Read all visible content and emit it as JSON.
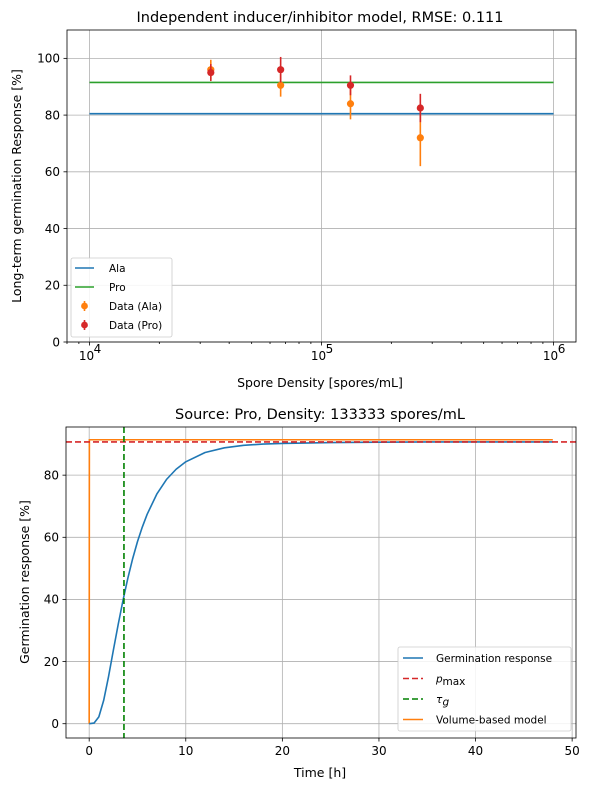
{
  "chart_data": [
    {
      "type": "scatter",
      "title": "Independent inducer/inhibitor model, RMSE: 0.111",
      "xlabel": "Spore Density [spores/mL]",
      "ylabel": "Long-term germination Response [%]",
      "xscale": "log",
      "xlim": [
        8000,
        1250000
      ],
      "ylim": [
        0,
        110
      ],
      "xticks": [
        10000,
        100000,
        1000000
      ],
      "xticklabels": [
        "10",
        "10",
        "10"
      ],
      "xtick_exponents": [
        "4",
        "5",
        "6"
      ],
      "yticks": [
        0,
        20,
        40,
        60,
        80,
        100
      ],
      "grid": true,
      "legend_position": "lower-left",
      "lines": [
        {
          "name": "Ala",
          "color": "#1f77b4",
          "x": [
            10000,
            1000000
          ],
          "y": [
            80.5,
            80.5
          ]
        },
        {
          "name": "Pro",
          "color": "#2ca02c",
          "x": [
            10000,
            1000000
          ],
          "y": [
            91.5,
            91.5
          ]
        }
      ],
      "errorbars": [
        {
          "name": "Data (Ala)",
          "color": "#ff7f0e",
          "x": [
            33333,
            66667,
            133333,
            266667
          ],
          "y": [
            96,
            90.5,
            84,
            72
          ],
          "err": [
            3.5,
            4,
            5.5,
            10
          ]
        },
        {
          "name": "Data (Pro)",
          "color": "#d62728",
          "x": [
            33333,
            66667,
            133333,
            266667
          ],
          "y": [
            95,
            96,
            90.5,
            82.5
          ],
          "err": [
            3,
            4.5,
            3.5,
            5
          ]
        }
      ]
    },
    {
      "type": "line",
      "title": "Source: Pro, Density: 133333 spores/mL",
      "xlabel": "Time [h]",
      "ylabel": "Germination response [%]",
      "xlim": [
        -2.4,
        50.4
      ],
      "ylim": [
        -4.6,
        95.5
      ],
      "xticks": [
        0,
        10,
        20,
        30,
        40,
        50
      ],
      "yticks": [
        0,
        20,
        40,
        60,
        80
      ],
      "grid": true,
      "legend_position": "lower-right",
      "pmax": 90.7,
      "tau_g": 3.6,
      "series": [
        {
          "name": "Germination response",
          "color": "#1f77b4",
          "style": "solid",
          "x": [
            0,
            0.5,
            1,
            1.5,
            2,
            2.5,
            3,
            3.5,
            4,
            4.5,
            5,
            5.5,
            6,
            7,
            8,
            9,
            10,
            12,
            14,
            16,
            18,
            20,
            25,
            30,
            35,
            40,
            45,
            48
          ],
          "y": [
            0,
            0.2,
            2.2,
            7.5,
            15.1,
            23.6,
            31.9,
            39.7,
            46.8,
            53.1,
            58.6,
            63.3,
            67.4,
            73.9,
            78.6,
            81.9,
            84.3,
            87.3,
            88.8,
            89.6,
            90.0,
            90.2,
            90.5,
            90.6,
            90.7,
            90.7,
            90.7,
            90.7
          ]
        },
        {
          "name": "$p_{\\rm max}$",
          "label_main": "p",
          "label_sub": "max",
          "color": "#d62728",
          "style": "dashed",
          "orientation": "horizontal",
          "value": 90.7
        },
        {
          "name": "$\\tau_g$",
          "label_main": "τ",
          "label_sub": "g",
          "color": "#008000",
          "style": "dashed",
          "orientation": "vertical",
          "value": 3.6
        },
        {
          "name": "Volume-based model",
          "color": "#ff7f0e",
          "style": "solid",
          "x": [
            0,
            0.02,
            48
          ],
          "y": [
            0,
            91.4,
            91.4
          ]
        }
      ]
    }
  ]
}
